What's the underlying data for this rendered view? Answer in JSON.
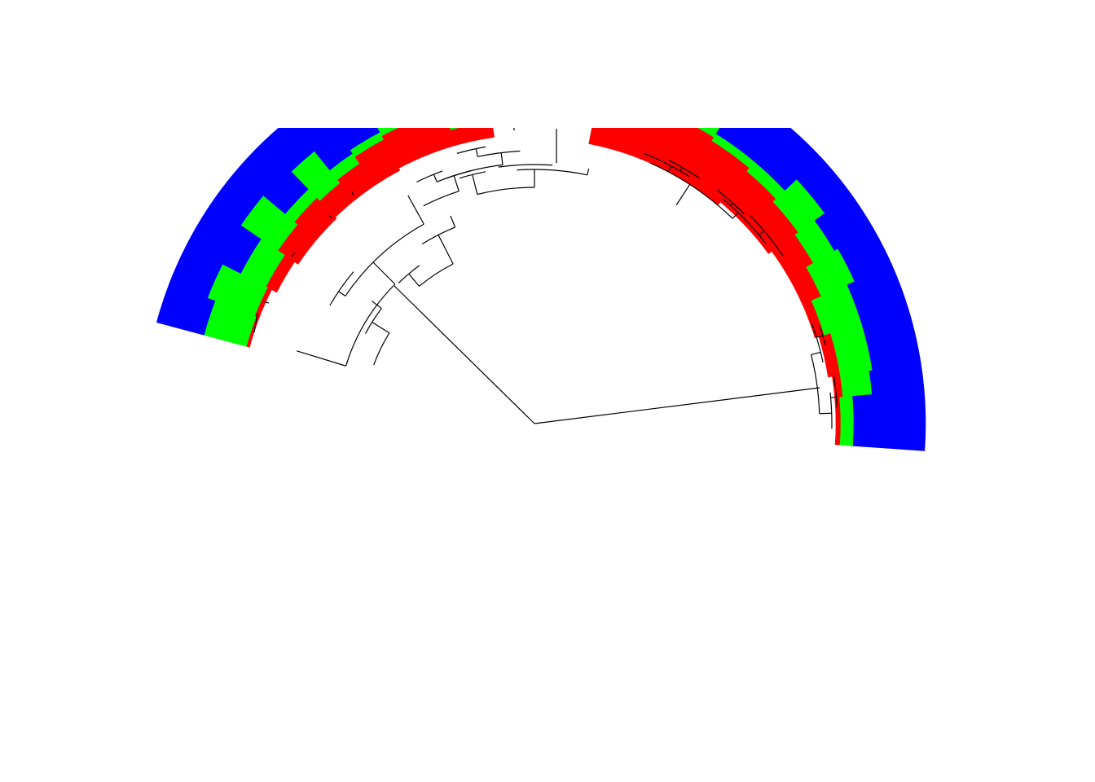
{
  "diagram": {
    "type": "circular-dendrogram-with-heatmap-rings",
    "rings": [
      {
        "name": "red",
        "color": "#ff0000"
      },
      {
        "name": "green",
        "color": "#00ff00"
      },
      {
        "name": "blue",
        "color": "#0000ff"
      }
    ],
    "branch_color": "#000000",
    "background": "#ffffff"
  }
}
